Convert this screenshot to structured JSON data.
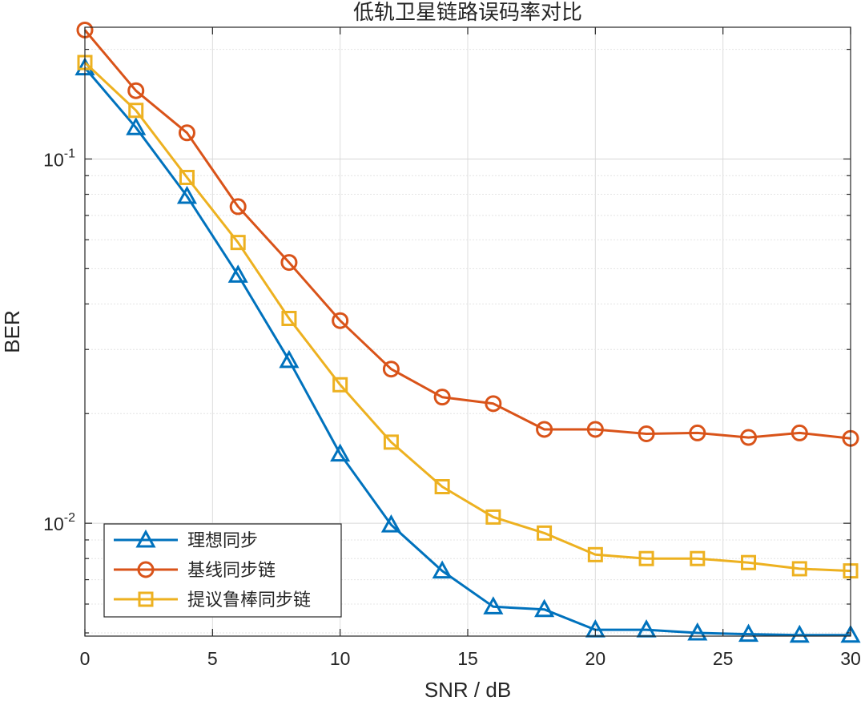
{
  "chart_data": {
    "type": "line",
    "title": "低轨卫星链路误码率对比",
    "xlabel": "SNR / dB",
    "ylabel": "BER",
    "xlim": [
      0,
      30
    ],
    "ylim": [
      0.0049,
      0.23
    ],
    "yscale": "log",
    "grid": true,
    "legend_position": "bottom-left",
    "x_ticks": [
      0,
      5,
      10,
      15,
      20,
      25,
      30
    ],
    "y_ticks": [
      {
        "base": "10",
        "exp": "-2",
        "value": 0.01
      },
      {
        "base": "10",
        "exp": "-1",
        "value": 0.1
      }
    ],
    "x": [
      0,
      2,
      4,
      6,
      8,
      10,
      12,
      14,
      16,
      18,
      20,
      22,
      24,
      26,
      28,
      30
    ],
    "series": [
      {
        "name": "理想同步",
        "color": "#0072BD",
        "marker": "triangle",
        "values": [
          0.178,
          0.122,
          0.079,
          0.048,
          0.028,
          0.0155,
          0.0099,
          0.0074,
          0.0059,
          0.0058,
          0.0051,
          0.0051,
          0.005,
          0.00496,
          0.00493,
          0.00493
        ]
      },
      {
        "name": "基线同步链",
        "color": "#D95319",
        "marker": "circle",
        "values": [
          0.226,
          0.154,
          0.118,
          0.074,
          0.052,
          0.036,
          0.0265,
          0.0222,
          0.0213,
          0.0181,
          0.0181,
          0.0176,
          0.0177,
          0.0172,
          0.0177,
          0.0171
        ]
      },
      {
        "name": "提议鲁棒同步链",
        "color": "#EDB120",
        "marker": "square",
        "values": [
          0.184,
          0.136,
          0.089,
          0.059,
          0.0365,
          0.024,
          0.0167,
          0.0126,
          0.0104,
          0.0094,
          0.0082,
          0.008,
          0.008,
          0.0078,
          0.0075,
          0.0074
        ]
      }
    ]
  }
}
